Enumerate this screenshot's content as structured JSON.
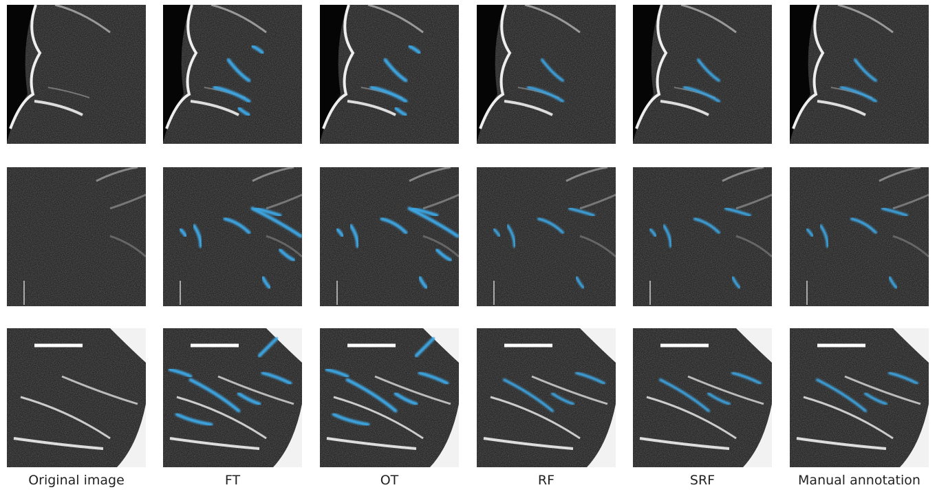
{
  "columns": [
    "Original image",
    "FT",
    "OT",
    "RF",
    "SRF",
    "Manual annotation"
  ]
}
